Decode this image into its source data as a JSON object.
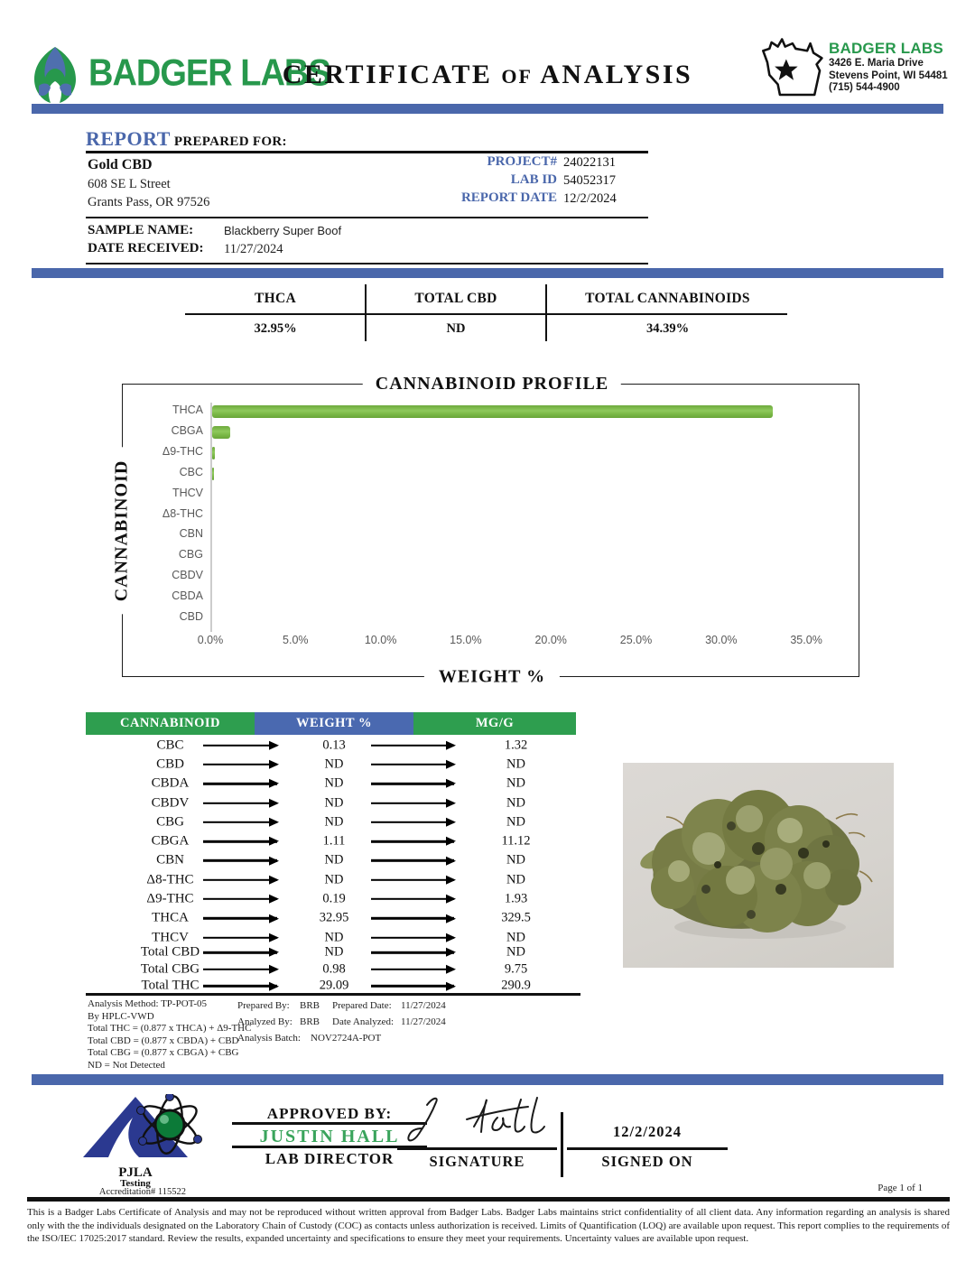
{
  "colors": {
    "accent_blue": "#4a67ab",
    "accent_green": "#2e9e4f",
    "bar_green": "#79b845",
    "label_gray": "#595959",
    "pjla_navy": "#2b3990"
  },
  "header": {
    "logo_text": "BADGER LABS",
    "title_part1": "CERTIFICATE",
    "title_of": "OF",
    "title_part2": "ANALYSIS",
    "lab_name": "BADGER LABS",
    "address_line1": "3426 E. Maria Drive",
    "address_line2": "Stevens Point, WI 54481",
    "phone": "(715) 544-4900"
  },
  "report": {
    "heading_report": "REPORT",
    "heading_prepared": "PREPARED FOR:",
    "client_name": "Gold CBD",
    "client_address1": "608 SE L Street",
    "client_address2": "Grants Pass, OR 97526",
    "project_label": "PROJECT#",
    "project_value": "24022131",
    "lab_id_label": "LAB ID",
    "lab_id_value": "54052317",
    "report_date_label": "REPORT DATE",
    "report_date_value": "12/2/2024",
    "sample_name_label": "SAMPLE NAME:",
    "sample_name_value": "Blackberry Super Boof",
    "date_received_label": "DATE RECEIVED:",
    "date_received_value": "11/27/2024"
  },
  "summary": {
    "columns": [
      {
        "label": "THCA",
        "value": "32.95%"
      },
      {
        "label": "TOTAL CBD",
        "value": "ND"
      },
      {
        "label": "TOTAL CANNABINOIDS",
        "value": "34.39%"
      }
    ]
  },
  "chart_data": {
    "type": "bar",
    "orientation": "horizontal",
    "title": "CANNABINOID PROFILE",
    "xlabel": "WEIGHT %",
    "ylabel": "CANNABINOID",
    "categories": [
      "THCA",
      "CBGA",
      "Δ9-THC",
      "CBC",
      "THCV",
      "Δ8-THC",
      "CBN",
      "CBG",
      "CBDV",
      "CBDA",
      "CBD"
    ],
    "values": [
      32.95,
      1.11,
      0.19,
      0.13,
      0,
      0,
      0,
      0,
      0,
      0,
      0
    ],
    "xlim": [
      0,
      37.5
    ],
    "x_ticks": [
      "0.0%",
      "5.0%",
      "10.0%",
      "15.0%",
      "20.0%",
      "25.0%",
      "30.0%",
      "35.0%"
    ],
    "grid": false,
    "legend": "none",
    "bar_color": "#79b845"
  },
  "table": {
    "headers": [
      "CANNABINOID",
      "WEIGHT %",
      "MG/G"
    ],
    "rows": [
      [
        "CBC",
        "0.13",
        "1.32"
      ],
      [
        "CBD",
        "ND",
        "ND"
      ],
      [
        "CBDA",
        "ND",
        "ND"
      ],
      [
        "CBDV",
        "ND",
        "ND"
      ],
      [
        "CBG",
        "ND",
        "ND"
      ],
      [
        "CBGA",
        "1.11",
        "11.12"
      ],
      [
        "CBN",
        "ND",
        "ND"
      ],
      [
        "Δ8-THC",
        "ND",
        "ND"
      ],
      [
        "Δ9-THC",
        "0.19",
        "1.93"
      ],
      [
        "THCA",
        "32.95",
        "329.5"
      ],
      [
        "THCV",
        "ND",
        "ND"
      ]
    ],
    "total_rows": [
      [
        "Total CBD",
        "ND",
        "ND"
      ],
      [
        "Total CBG",
        "0.98",
        "9.75"
      ],
      [
        "Total THC",
        "29.09",
        "290.9"
      ]
    ]
  },
  "notes": {
    "left": [
      "Analysis Method: TP-POT-05",
      "By HPLC-VWD",
      "Total THC = (0.877 x  THCA) + Δ9-THC",
      "Total CBD = (0.877 x  CBDA) + CBD",
      "Total CBG = (0.877 x  CBGA) + CBG",
      "ND = Not Detected"
    ],
    "prepared_by_label": "Prepared By:",
    "prepared_by": "BRB",
    "prepared_date_label": "Prepared Date:",
    "prepared_date": "11/27/2024",
    "analyzed_by_label": "Analyzed By:",
    "analyzed_by": "BRB",
    "date_analyzed_label": "Date Analyzed:",
    "date_analyzed": "11/27/2024",
    "analysis_batch_label": "Analysis Batch:",
    "analysis_batch": "NOV2724A-POT"
  },
  "approval": {
    "pjla_line1": "PJLA",
    "pjla_line2": "Testing",
    "accreditation": "Accreditation# 115522",
    "approved_by_label": "APPROVED BY:",
    "approver_name": "JUSTIN HALL",
    "approver_title": "LAB DIRECTOR",
    "signature_label": "SIGNATURE",
    "signed_on_date": "12/2/2024",
    "signed_on_label": "SIGNED ON",
    "page_label": "Page 1 of 1"
  },
  "footer": {
    "disclaimer": "This is a Badger Labs Certificate of Analysis and may not be reproduced without written approval from Badger Labs. Badger Labs maintains strict confidentiality of all client data. Any information regarding an analysis is shared only with the the individuals designated on the Laboratory Chain of Custody (COC) as contacts unless authorization is received. Limits of Quantification (LOQ) are available upon request. This report complies to the requirements of the ISO/IEC 17025:2017 standard. Review the results, expanded uncertainty and specifications to ensure they meet your requirements. Uncertainty values are available upon request."
  }
}
